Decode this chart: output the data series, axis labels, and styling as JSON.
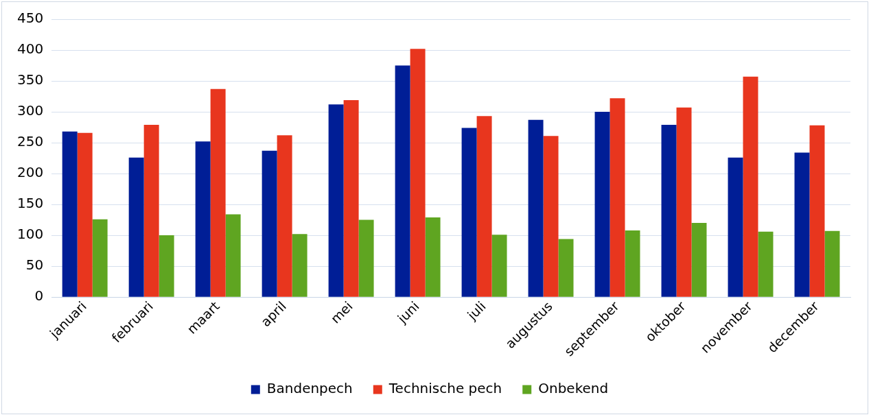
{
  "chart_data": {
    "type": "bar",
    "categories": [
      "januari",
      "februari",
      "maart",
      "april",
      "mei",
      "juni",
      "juli",
      "augustus",
      "september",
      "oktober",
      "november",
      "december"
    ],
    "series": [
      {
        "name": "Bandenpech",
        "color": "#001e96",
        "values": [
          268,
          226,
          252,
          237,
          312,
          375,
          274,
          287,
          300,
          279,
          226,
          234
        ]
      },
      {
        "name": "Technische pech",
        "color": "#e8361e",
        "values": [
          266,
          279,
          337,
          262,
          319,
          402,
          293,
          261,
          322,
          307,
          357,
          278
        ]
      },
      {
        "name": "Onbekend",
        "color": "#5fa521",
        "values": [
          126,
          100,
          134,
          102,
          125,
          129,
          101,
          94,
          108,
          120,
          106,
          107
        ]
      }
    ],
    "ylim": [
      0,
      450
    ],
    "yticks": [
      0,
      50,
      100,
      150,
      200,
      250,
      300,
      350,
      400,
      450
    ],
    "grid": "y",
    "legend": "bottom"
  }
}
